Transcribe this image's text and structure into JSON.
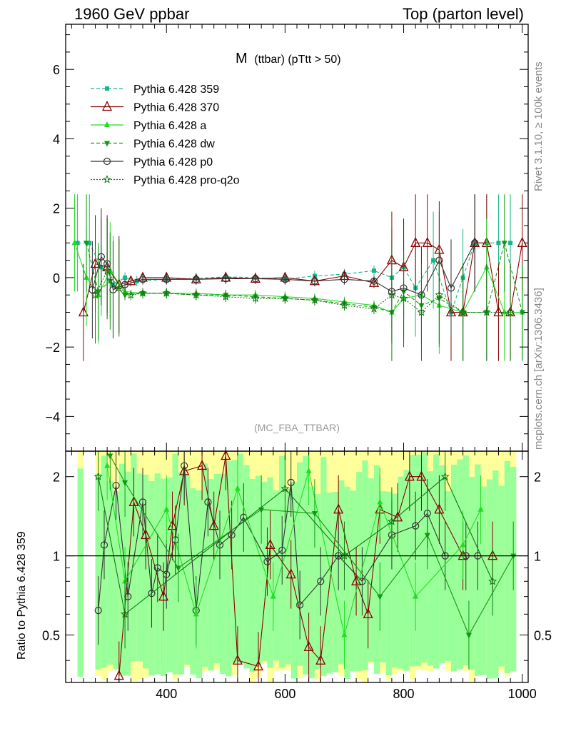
{
  "header": {
    "left": "1960 GeV ppbar",
    "right": "Top (parton level)"
  },
  "side": {
    "rivet": "Rivet 3.1.10, ≥ 100k events",
    "mcplots": "mcplots.cern.ch [arXiv:1306.3436]"
  },
  "plot_title": "M (ttbar) (pTtt > 50)",
  "plot_title_main": "M",
  "plot_title_sub": "(ttbar) (pTtt > 50)",
  "analysis_label": "(MC_FBA_TTBAR)",
  "ratio_ylabel": "Ratio to Pythia 6.428 359",
  "colors": {
    "band_yellow": "#ffff99",
    "band_green": "#99ff99",
    "p359": "#18b588",
    "p370": "#8b0000",
    "pa": "#22dd22",
    "pdw": "#119911",
    "pp0": "#333333",
    "pq2o": "#117711"
  },
  "chart_data": [
    {
      "type": "line",
      "panel": "main",
      "title": "M (ttbar) (pTtt > 50)",
      "x_range": [
        230,
        1010
      ],
      "ylim": [
        -5.0,
        7.3
      ],
      "x_ticks": [
        400,
        600,
        800,
        1000
      ],
      "y_ticks": [
        -4,
        -2,
        0,
        2,
        4,
        6
      ],
      "y_tick_labels": [
        "−4",
        "−2",
        "0",
        "2",
        "4",
        "6"
      ],
      "legend_position": "top-left",
      "series": [
        {
          "name": "Pythia 6.428 359",
          "key": "p359",
          "dash": "5,3",
          "marker": "square",
          "x": [
            250,
            270,
            290,
            310,
            330,
            350,
            400,
            450,
            500,
            550,
            600,
            650,
            700,
            750,
            780,
            800,
            820,
            850,
            880,
            900,
            920,
            940,
            960,
            980
          ],
          "y": [
            1.0,
            1.0,
            0.3,
            -0.2,
            0.0,
            -0.1,
            -0.05,
            -0.02,
            0.02,
            0.0,
            -0.05,
            0.05,
            0.1,
            0.2,
            0.0,
            0.3,
            -0.3,
            0.5,
            -1.0,
            0.0,
            1.0,
            1.0,
            1.0,
            1.0
          ]
        },
        {
          "name": "Pythia 6.428 370",
          "key": "p370",
          "dash": "",
          "marker": "triangle",
          "x": [
            260,
            280,
            300,
            320,
            340,
            360,
            400,
            450,
            500,
            550,
            600,
            650,
            700,
            750,
            780,
            800,
            820,
            840,
            860,
            880,
            900,
            920,
            940,
            960,
            980,
            1000
          ],
          "y": [
            -1.0,
            0.4,
            0.3,
            -0.2,
            -0.1,
            0.0,
            0.0,
            -0.05,
            0.0,
            -0.03,
            0.0,
            -0.1,
            0.05,
            -0.15,
            0.5,
            0.3,
            1.0,
            1.0,
            0.8,
            -1.0,
            -1.0,
            1.0,
            1.0,
            -1.0,
            -1.0,
            1.0
          ]
        },
        {
          "name": "Pythia 6.428 a",
          "key": "pa",
          "dash": "",
          "marker": "triangle-filled",
          "x": [
            245,
            265,
            285,
            305,
            330,
            360,
            400,
            450,
            500,
            550,
            600,
            650,
            700,
            750,
            780,
            800,
            830,
            860,
            900,
            940,
            970,
            1000
          ],
          "y": [
            1.0,
            0.0,
            -0.5,
            0.2,
            -0.4,
            -0.45,
            -0.45,
            -0.45,
            -0.5,
            -0.5,
            -0.55,
            -0.6,
            -0.7,
            -0.8,
            -1.0,
            -0.6,
            -0.5,
            -0.8,
            -1.0,
            0.3,
            -1.0,
            -1.0
          ]
        },
        {
          "name": "Pythia 6.428 dw",
          "key": "pdw",
          "dash": "5,3",
          "marker": "triangle-down",
          "x": [
            265,
            285,
            305,
            330,
            360,
            400,
            450,
            500,
            550,
            600,
            650,
            700,
            750,
            780,
            800,
            830,
            860,
            900,
            940,
            970,
            1000
          ],
          "y": [
            1.0,
            -0.4,
            -0.1,
            -0.5,
            -0.45,
            -0.45,
            -0.5,
            -0.5,
            -0.55,
            -0.6,
            -0.65,
            -0.75,
            -0.85,
            -1.0,
            -0.4,
            -0.8,
            -0.6,
            -1.0,
            -1.0,
            1.0,
            -1.0
          ]
        },
        {
          "name": "Pythia 6.428 p0",
          "key": "pp0",
          "dash": "",
          "marker": "circle",
          "x": [
            275,
            290,
            300,
            310,
            330,
            360,
            400,
            450,
            500,
            550,
            600,
            650,
            700,
            750,
            780,
            800,
            830,
            860,
            880,
            920
          ],
          "y": [
            -0.35,
            0.6,
            0.4,
            -0.35,
            -0.2,
            -0.05,
            -0.05,
            -0.05,
            -0.03,
            -0.03,
            -0.05,
            -0.1,
            -0.05,
            -0.1,
            -0.4,
            -0.3,
            -0.5,
            0.5,
            -0.3,
            1.0
          ]
        },
        {
          "name": "Pythia 6.428 pro-q2o",
          "key": "pq2o",
          "dash": "2,2",
          "marker": "star",
          "x": [
            280,
            300,
            320,
            340,
            360,
            400,
            450,
            500,
            550,
            600,
            650,
            700,
            750,
            780,
            800,
            830,
            860,
            900,
            940,
            980
          ],
          "y": [
            -0.5,
            0.2,
            -0.3,
            -0.5,
            -0.45,
            -0.45,
            -0.5,
            -0.55,
            -0.6,
            -0.6,
            -0.65,
            -0.8,
            -0.9,
            -0.5,
            -0.6,
            -1.0,
            -0.5,
            -1.0,
            -1.0,
            -1.0
          ]
        }
      ]
    },
    {
      "type": "line",
      "panel": "ratio",
      "ylabel": "Ratio to Pythia 6.428 359",
      "x_range": [
        230,
        1010
      ],
      "ylim": [
        0.33,
        2.5
      ],
      "log_y": true,
      "x_ticks": [
        400,
        600,
        800,
        1000
      ],
      "y_ticks": [
        0.5,
        1,
        2
      ],
      "series": [
        {
          "key": "p370",
          "marker": "triangle",
          "x": [
            320,
            345,
            365,
            395,
            410,
            430,
            460,
            480,
            500,
            520,
            555,
            575,
            610,
            640,
            660,
            690,
            720,
            740,
            760,
            790,
            810,
            830,
            860,
            900,
            950
          ],
          "y": [
            0.35,
            1.6,
            1.2,
            0.7,
            1.3,
            2.1,
            2.2,
            1.3,
            2.4,
            0.4,
            0.38,
            1.1,
            0.85,
            0.45,
            0.4,
            1.5,
            0.8,
            0.6,
            1.5,
            1.4,
            2.0,
            2.0,
            1.5,
            1.0,
            1.0
          ]
        },
        {
          "key": "pp0",
          "marker": "circle",
          "x": [
            285,
            295,
            315,
            335,
            360,
            375,
            385,
            400,
            415,
            430,
            450,
            470,
            490,
            510,
            530,
            570,
            595,
            610,
            625,
            660,
            690,
            730,
            780,
            820,
            840,
            870,
            905,
            925
          ],
          "y": [
            0.62,
            1.1,
            1.85,
            0.7,
            1.6,
            0.72,
            0.9,
            0.85,
            1.15,
            2.2,
            0.62,
            1.6,
            1.1,
            1.2,
            1.4,
            0.95,
            1.05,
            1.9,
            0.65,
            0.8,
            1.0,
            0.8,
            1.2,
            1.3,
            1.45,
            1.0,
            1.0,
            1.0
          ]
        },
        {
          "key": "pa",
          "marker": "triangle-filled",
          "x": [
            300,
            330,
            400,
            450,
            520,
            580,
            640,
            700,
            760,
            820,
            900,
            930
          ],
          "y": [
            2.2,
            0.8,
            1.5,
            0.6,
            1.8,
            0.7,
            2.1,
            0.5,
            1.6,
            0.7,
            1.1,
            1.5
          ]
        },
        {
          "key": "pdw",
          "marker": "triangle-down",
          "x": [
            305,
            330,
            420,
            560,
            650,
            760,
            840,
            910,
            985
          ],
          "y": [
            2.4,
            1.9,
            0.9,
            1.5,
            1.45,
            0.7,
            1.2,
            0.5,
            1.0
          ]
        },
        {
          "key": "pq2o",
          "marker": "star",
          "x": [
            285,
            330,
            600,
            700,
            780,
            870,
            950
          ],
          "y": [
            2.0,
            0.6,
            1.8,
            1.0,
            1.35,
            2.0,
            0.8
          ]
        }
      ]
    }
  ]
}
